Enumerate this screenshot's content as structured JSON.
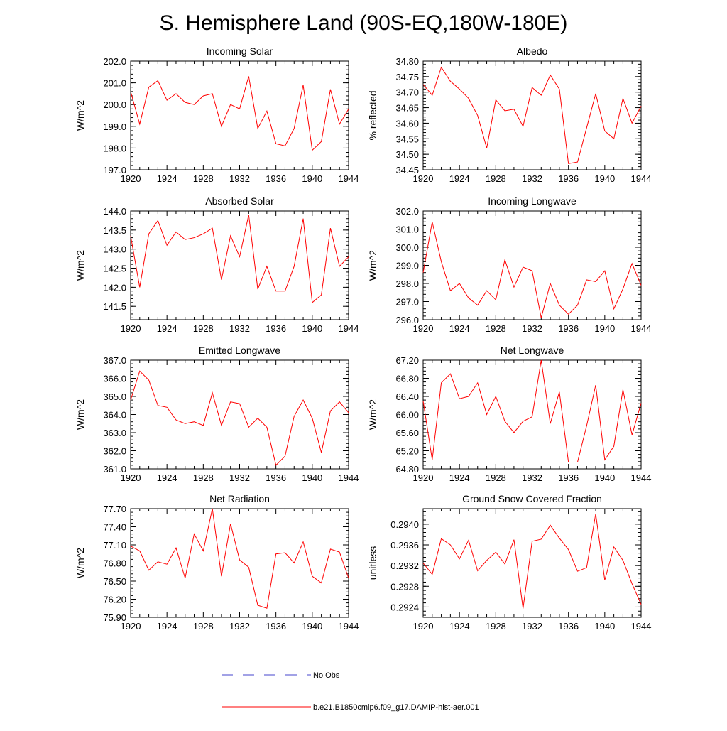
{
  "page": {
    "title": "S. Hemisphere Land (90S-EQ,180W-180E)"
  },
  "legend": {
    "obs_label": "No Obs",
    "model_label": "b.e21.B1850cmip6.f09_g17.DAMIP-hist-aer.001",
    "obs_color": "#4444cc",
    "model_color": "#ff0000"
  },
  "chart_data": [
    {
      "type": "line",
      "title": "Incoming Solar",
      "ylabel": "W/m^2",
      "ylim": [
        197.0,
        202.0
      ],
      "yticks": [
        "197.0",
        "198.0",
        "199.0",
        "200.0",
        "201.0",
        "202.0"
      ],
      "xlim": [
        1920,
        1944
      ],
      "xticks": [
        "1920",
        "1924",
        "1928",
        "1932",
        "1936",
        "1940",
        "1944"
      ],
      "series": [
        {
          "color": "#ff0000",
          "x": [
            1920,
            1921,
            1922,
            1923,
            1924,
            1925,
            1926,
            1927,
            1928,
            1929,
            1930,
            1931,
            1932,
            1933,
            1934,
            1935,
            1936,
            1937,
            1938,
            1939,
            1940,
            1941,
            1942,
            1943,
            1944
          ],
          "values": [
            200.6,
            199.1,
            200.8,
            201.1,
            200.2,
            200.5,
            200.1,
            200.0,
            200.4,
            200.5,
            199.0,
            200.0,
            199.8,
            201.3,
            198.9,
            199.7,
            198.2,
            198.1,
            198.9,
            200.9,
            197.9,
            198.3,
            200.7,
            199.1,
            199.8
          ]
        }
      ]
    },
    {
      "type": "line",
      "title": "Albedo",
      "ylabel": "% reflected",
      "ylim": [
        34.45,
        34.8
      ],
      "yticks": [
        "34.45",
        "34.50",
        "34.55",
        "34.60",
        "34.65",
        "34.70",
        "34.75",
        "34.80"
      ],
      "xlim": [
        1920,
        1944
      ],
      "xticks": [
        "1920",
        "1924",
        "1928",
        "1932",
        "1936",
        "1940",
        "1944"
      ],
      "series": [
        {
          "color": "#ff0000",
          "x": [
            1920,
            1921,
            1922,
            1923,
            1924,
            1925,
            1926,
            1927,
            1928,
            1929,
            1930,
            1931,
            1932,
            1933,
            1934,
            1935,
            1936,
            1937,
            1938,
            1939,
            1940,
            1941,
            1942,
            1943,
            1944
          ],
          "values": [
            34.725,
            34.69,
            34.78,
            34.735,
            34.71,
            34.68,
            34.625,
            34.52,
            34.675,
            34.64,
            34.645,
            34.59,
            34.715,
            34.69,
            34.755,
            34.71,
            34.47,
            34.475,
            34.585,
            34.695,
            34.575,
            34.55,
            34.68,
            34.6,
            34.655
          ]
        }
      ]
    },
    {
      "type": "line",
      "title": "Absorbed Solar",
      "ylabel": "W/m^2",
      "ylim": [
        141.15,
        144.0
      ],
      "yticks": [
        "141.5",
        "142.0",
        "142.5",
        "143.0",
        "143.5",
        "144.0"
      ],
      "xlim": [
        1920,
        1944
      ],
      "xticks": [
        "1920",
        "1924",
        "1928",
        "1932",
        "1936",
        "1940",
        "1944"
      ],
      "series": [
        {
          "color": "#ff0000",
          "x": [
            1920,
            1921,
            1922,
            1923,
            1924,
            1925,
            1926,
            1927,
            1928,
            1929,
            1930,
            1931,
            1932,
            1933,
            1934,
            1935,
            1936,
            1937,
            1938,
            1939,
            1940,
            1941,
            1942,
            1943,
            1944
          ],
          "values": [
            143.35,
            142.0,
            143.4,
            143.75,
            143.1,
            143.45,
            143.25,
            143.3,
            143.4,
            143.55,
            142.2,
            143.35,
            142.8,
            143.9,
            141.95,
            142.55,
            141.9,
            141.9,
            142.55,
            143.8,
            141.6,
            141.8,
            143.55,
            142.55,
            142.8
          ]
        }
      ]
    },
    {
      "type": "line",
      "title": "Incoming Longwave",
      "ylabel": "W/m^2",
      "ylim": [
        296.0,
        302.0
      ],
      "yticks": [
        "296.0",
        "297.0",
        "298.0",
        "299.0",
        "300.0",
        "301.0",
        "302.0"
      ],
      "xlim": [
        1920,
        1944
      ],
      "xticks": [
        "1920",
        "1924",
        "1928",
        "1932",
        "1936",
        "1940",
        "1944"
      ],
      "series": [
        {
          "color": "#ff0000",
          "x": [
            1920,
            1921,
            1922,
            1923,
            1924,
            1925,
            1926,
            1927,
            1928,
            1929,
            1930,
            1931,
            1932,
            1933,
            1934,
            1935,
            1936,
            1937,
            1938,
            1939,
            1940,
            1941,
            1942,
            1943,
            1944
          ],
          "values": [
            298.6,
            301.4,
            299.2,
            297.6,
            298.0,
            297.2,
            296.8,
            297.6,
            297.1,
            299.3,
            297.8,
            298.9,
            298.7,
            296.1,
            298.0,
            296.8,
            296.3,
            296.8,
            298.2,
            298.1,
            298.7,
            296.6,
            297.7,
            299.1,
            297.9
          ]
        }
      ]
    },
    {
      "type": "line",
      "title": "Emitted Longwave",
      "ylabel": "W/m^2",
      "ylim": [
        361.0,
        367.0
      ],
      "yticks": [
        "361.0",
        "362.0",
        "363.0",
        "364.0",
        "365.0",
        "366.0",
        "367.0"
      ],
      "xlim": [
        1920,
        1944
      ],
      "xticks": [
        "1920",
        "1924",
        "1928",
        "1932",
        "1936",
        "1940",
        "1944"
      ],
      "series": [
        {
          "color": "#ff0000",
          "x": [
            1920,
            1921,
            1922,
            1923,
            1924,
            1925,
            1926,
            1927,
            1928,
            1929,
            1930,
            1931,
            1932,
            1933,
            1934,
            1935,
            1936,
            1937,
            1938,
            1939,
            1940,
            1941,
            1942,
            1943,
            1944
          ],
          "values": [
            364.8,
            366.4,
            365.9,
            364.5,
            364.4,
            363.7,
            363.5,
            363.6,
            363.4,
            365.2,
            363.4,
            364.7,
            364.6,
            363.3,
            363.8,
            363.3,
            361.2,
            361.7,
            363.9,
            364.8,
            363.8,
            361.9,
            364.2,
            364.7,
            364.1
          ]
        }
      ]
    },
    {
      "type": "line",
      "title": "Net Longwave",
      "ylabel": "W/m^2",
      "ylim": [
        64.8,
        67.2
      ],
      "yticks": [
        "64.80",
        "65.20",
        "65.60",
        "66.00",
        "66.40",
        "66.80",
        "67.20"
      ],
      "xlim": [
        1920,
        1944
      ],
      "xticks": [
        "1920",
        "1924",
        "1928",
        "1932",
        "1936",
        "1940",
        "1944"
      ],
      "series": [
        {
          "color": "#ff0000",
          "x": [
            1920,
            1921,
            1922,
            1923,
            1924,
            1925,
            1926,
            1927,
            1928,
            1929,
            1930,
            1931,
            1932,
            1933,
            1934,
            1935,
            1936,
            1937,
            1938,
            1939,
            1940,
            1941,
            1942,
            1943,
            1944
          ],
          "values": [
            66.3,
            65.0,
            66.7,
            66.9,
            66.35,
            66.4,
            66.7,
            66.0,
            66.4,
            65.85,
            65.6,
            65.85,
            65.95,
            67.2,
            65.8,
            66.5,
            64.95,
            64.95,
            65.75,
            66.65,
            65.0,
            65.3,
            66.55,
            65.55,
            66.25
          ]
        }
      ]
    },
    {
      "type": "line",
      "title": "Net Radiation",
      "ylabel": "W/m^2",
      "ylim": [
        75.9,
        77.7
      ],
      "yticks": [
        "75.90",
        "76.20",
        "76.50",
        "76.80",
        "77.10",
        "77.40",
        "77.70"
      ],
      "xlim": [
        1920,
        1944
      ],
      "xticks": [
        "1920",
        "1924",
        "1928",
        "1932",
        "1936",
        "1940",
        "1944"
      ],
      "series": [
        {
          "color": "#ff0000",
          "x": [
            1920,
            1921,
            1922,
            1923,
            1924,
            1925,
            1926,
            1927,
            1928,
            1929,
            1930,
            1931,
            1932,
            1933,
            1934,
            1935,
            1936,
            1937,
            1938,
            1939,
            1940,
            1941,
            1942,
            1943,
            1944
          ],
          "values": [
            77.08,
            77.0,
            76.68,
            76.82,
            76.78,
            77.05,
            76.55,
            77.28,
            77.0,
            77.7,
            76.58,
            77.45,
            76.85,
            76.73,
            76.1,
            76.05,
            76.95,
            76.97,
            76.8,
            77.15,
            76.58,
            76.47,
            77.03,
            76.98,
            76.55
          ]
        }
      ]
    },
    {
      "type": "line",
      "title": "Ground Snow Covered Fraction",
      "ylabel": "unitless",
      "ylim": [
        0.2922,
        0.2943
      ],
      "yticks": [
        "0.2924",
        "0.2928",
        "0.2932",
        "0.2936",
        "0.2940"
      ],
      "xlim": [
        1920,
        1944
      ],
      "xticks": [
        "1920",
        "1924",
        "1928",
        "1932",
        "1936",
        "1940",
        "1944"
      ],
      "series": [
        {
          "color": "#ff0000",
          "x": [
            1920,
            1921,
            1922,
            1923,
            1924,
            1925,
            1926,
            1927,
            1928,
            1929,
            1930,
            1931,
            1932,
            1933,
            1934,
            1935,
            1936,
            1937,
            1938,
            1939,
            1940,
            1941,
            1942,
            1943,
            1944
          ],
          "values": [
            0.29325,
            0.29303,
            0.29372,
            0.2936,
            0.29333,
            0.29369,
            0.2931,
            0.2933,
            0.29346,
            0.29323,
            0.2937,
            0.29237,
            0.29367,
            0.29371,
            0.29398,
            0.29373,
            0.29351,
            0.29309,
            0.29316,
            0.2942,
            0.29292,
            0.29356,
            0.2933,
            0.29285,
            0.29245
          ]
        }
      ]
    }
  ]
}
